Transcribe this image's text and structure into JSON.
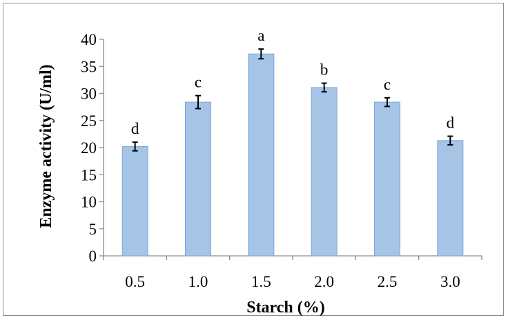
{
  "chart_data": {
    "type": "bar",
    "categories": [
      "0.5",
      "1.0",
      "1.5",
      "2.0",
      "2.5",
      "3.0"
    ],
    "values": [
      20.2,
      28.4,
      37.3,
      31.1,
      28.4,
      21.3
    ],
    "errors": [
      0.8,
      1.2,
      0.9,
      0.8,
      0.8,
      0.8
    ],
    "significance": [
      "d",
      "c",
      "a",
      "b",
      "c",
      "d"
    ],
    "xlabel": "Starch (%)",
    "ylabel": "Enzyme activity (U/ml)",
    "ylim": [
      0,
      40
    ],
    "yticks": [
      "0",
      "5",
      "10",
      "15",
      "20",
      "25",
      "30",
      "35",
      "40"
    ],
    "bar_color": "#a6c4e6",
    "bar_edge_color": "#7ea6d6",
    "grid": false,
    "legend": "none"
  }
}
